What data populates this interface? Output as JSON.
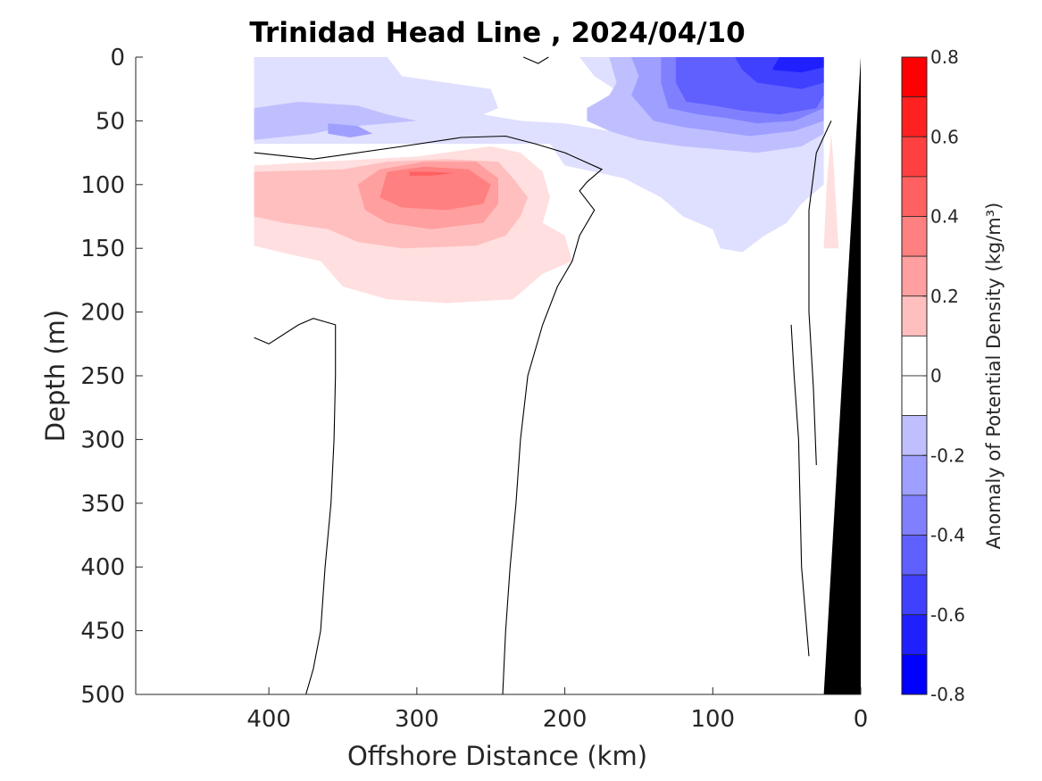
{
  "chart_data": {
    "type": "heatmap",
    "title": "Trinidad Head Line , 2024/04/10",
    "xlabel": "Offshore Distance (km)",
    "ylabel": "Depth (m)",
    "xlim": [
      490,
      0
    ],
    "ylim": [
      0,
      500
    ],
    "x_reversed": true,
    "y_reversed": true,
    "xticks": [
      400,
      300,
      200,
      100,
      0
    ],
    "yticks": [
      0,
      50,
      100,
      150,
      200,
      250,
      300,
      350,
      400,
      450,
      500
    ],
    "colorbar": {
      "label": "Anomaly of Potential Density (kg/m³)",
      "range": [
        -0.8,
        0.8
      ],
      "step": 0.1,
      "ticks": [
        0.8,
        0.6,
        0.4,
        0.2,
        0,
        -0.2,
        -0.4,
        -0.6,
        -0.8
      ],
      "tick_labels": [
        "0.8",
        "0.6",
        "0.4",
        "0.2",
        "0",
        "-0.2",
        "-0.4",
        "-0.6",
        "-0.8"
      ],
      "positive_color": "#ff0000",
      "negative_color": "#0000ff",
      "zero_color": "#ffffff"
    },
    "filled_contours": [
      {
        "value": -0.1,
        "polygon": [
          [
            410,
            0
          ],
          [
            320,
            0
          ],
          [
            310,
            15
          ],
          [
            250,
            25
          ],
          [
            245,
            40
          ],
          [
            255,
            45
          ],
          [
            230,
            50
          ],
          [
            200,
            52
          ],
          [
            170,
            58
          ],
          [
            150,
            60
          ],
          [
            100,
            63
          ],
          [
            70,
            65
          ],
          [
            40,
            68
          ],
          [
            410,
            68
          ]
        ]
      },
      {
        "value": -0.1,
        "polygon": [
          [
            210,
            0
          ],
          [
            190,
            0
          ],
          [
            180,
            15
          ],
          [
            160,
            30
          ],
          [
            145,
            40
          ],
          [
            150,
            55
          ],
          [
            180,
            60
          ],
          [
            210,
            68
          ],
          [
            200,
            85
          ],
          [
            160,
            95
          ],
          [
            135,
            110
          ],
          [
            120,
            125
          ],
          [
            100,
            135
          ],
          [
            95,
            150
          ],
          [
            80,
            153
          ],
          [
            65,
            140
          ],
          [
            50,
            130
          ],
          [
            40,
            115
          ],
          [
            25,
            100
          ],
          [
            25,
            50
          ],
          [
            25,
            0
          ]
        ]
      },
      {
        "value": -0.2,
        "polygon": [
          [
            410,
            40
          ],
          [
            380,
            35
          ],
          [
            340,
            38
          ],
          [
            320,
            45
          ],
          [
            300,
            50
          ],
          [
            350,
            55
          ],
          [
            370,
            60
          ],
          [
            410,
            65
          ]
        ]
      },
      {
        "value": -0.2,
        "polygon": [
          [
            170,
            0
          ],
          [
            165,
            20
          ],
          [
            170,
            30
          ],
          [
            185,
            40
          ],
          [
            185,
            50
          ],
          [
            170,
            58
          ],
          [
            150,
            65
          ],
          [
            120,
            70
          ],
          [
            100,
            72
          ],
          [
            70,
            75
          ],
          [
            40,
            70
          ],
          [
            25,
            60
          ],
          [
            25,
            0
          ]
        ]
      },
      {
        "value": -0.3,
        "polygon": [
          [
            360,
            52
          ],
          [
            340,
            54
          ],
          [
            330,
            60
          ],
          [
            345,
            63
          ],
          [
            360,
            60
          ]
        ]
      },
      {
        "value": -0.3,
        "polygon": [
          [
            155,
            0
          ],
          [
            150,
            15
          ],
          [
            155,
            30
          ],
          [
            140,
            50
          ],
          [
            120,
            55
          ],
          [
            100,
            58
          ],
          [
            75,
            62
          ],
          [
            45,
            58
          ],
          [
            25,
            50
          ],
          [
            25,
            0
          ]
        ]
      },
      {
        "value": -0.4,
        "polygon": [
          [
            135,
            0
          ],
          [
            135,
            20
          ],
          [
            130,
            40
          ],
          [
            110,
            45
          ],
          [
            90,
            48
          ],
          [
            70,
            52
          ],
          [
            45,
            50
          ],
          [
            25,
            40
          ],
          [
            25,
            0
          ]
        ]
      },
      {
        "value": -0.5,
        "polygon": [
          [
            125,
            0
          ],
          [
            125,
            20
          ],
          [
            118,
            35
          ],
          [
            100,
            38
          ],
          [
            80,
            42
          ],
          [
            55,
            45
          ],
          [
            30,
            40
          ],
          [
            25,
            30
          ],
          [
            25,
            0
          ]
        ]
      },
      {
        "value": -0.6,
        "polygon": [
          [
            85,
            0
          ],
          [
            80,
            10
          ],
          [
            70,
            20
          ],
          [
            40,
            25
          ],
          [
            25,
            20
          ],
          [
            25,
            0
          ]
        ]
      },
      {
        "value": -0.7,
        "polygon": [
          [
            55,
            0
          ],
          [
            60,
            10
          ],
          [
            40,
            12
          ],
          [
            25,
            8
          ],
          [
            25,
            0
          ]
        ]
      },
      {
        "value": 0.1,
        "polygon": [
          [
            410,
            85
          ],
          [
            300,
            78
          ],
          [
            250,
            70
          ],
          [
            230,
            75
          ],
          [
            215,
            90
          ],
          [
            210,
            110
          ],
          [
            215,
            130
          ],
          [
            200,
            140
          ],
          [
            195,
            160
          ],
          [
            215,
            170
          ],
          [
            235,
            190
          ],
          [
            280,
            193
          ],
          [
            320,
            190
          ],
          [
            350,
            180
          ],
          [
            365,
            160
          ],
          [
            385,
            155
          ],
          [
            410,
            148
          ]
        ]
      },
      {
        "value": 0.1,
        "polygon": [
          [
            20,
            60
          ],
          [
            23,
            100
          ],
          [
            25,
            150
          ],
          [
            15,
            150
          ],
          [
            18,
            90
          ]
        ]
      },
      {
        "value": 0.2,
        "polygon": [
          [
            410,
            90
          ],
          [
            350,
            88
          ],
          [
            320,
            82
          ],
          [
            280,
            80
          ],
          [
            245,
            82
          ],
          [
            235,
            95
          ],
          [
            225,
            110
          ],
          [
            230,
            125
          ],
          [
            240,
            140
          ],
          [
            260,
            148
          ],
          [
            310,
            150
          ],
          [
            340,
            145
          ],
          [
            360,
            135
          ],
          [
            390,
            130
          ],
          [
            410,
            125
          ]
        ]
      },
      {
        "value": 0.3,
        "polygon": [
          [
            325,
            88
          ],
          [
            295,
            82
          ],
          [
            260,
            82
          ],
          [
            245,
            95
          ],
          [
            245,
            115
          ],
          [
            255,
            130
          ],
          [
            290,
            135
          ],
          [
            320,
            130
          ],
          [
            335,
            120
          ],
          [
            340,
            100
          ]
        ]
      },
      {
        "value": 0.4,
        "polygon": [
          [
            320,
            90
          ],
          [
            295,
            86
          ],
          [
            265,
            88
          ],
          [
            250,
            100
          ],
          [
            255,
            115
          ],
          [
            280,
            120
          ],
          [
            310,
            118
          ],
          [
            325,
            110
          ]
        ]
      },
      {
        "value": 0.5,
        "polygon": [
          [
            305,
            90
          ],
          [
            290,
            90
          ],
          [
            275,
            91
          ],
          [
            290,
            93
          ],
          [
            305,
            93
          ]
        ]
      }
    ],
    "zero_contours": [
      [
        [
          410,
          75
        ],
        [
          370,
          80
        ],
        [
          310,
          70
        ],
        [
          270,
          63
        ],
        [
          240,
          62
        ],
        [
          220,
          68
        ],
        [
          200,
          75
        ],
        [
          175,
          88
        ],
        [
          185,
          98
        ],
        [
          190,
          105
        ],
        [
          180,
          120
        ],
        [
          190,
          140
        ],
        [
          195,
          160
        ],
        [
          205,
          180
        ],
        [
          215,
          210
        ],
        [
          225,
          250
        ],
        [
          230,
          300
        ],
        [
          233,
          350
        ],
        [
          237,
          400
        ],
        [
          240,
          450
        ],
        [
          242,
          500
        ]
      ],
      [
        [
          410,
          220
        ],
        [
          400,
          225
        ],
        [
          380,
          210
        ],
        [
          370,
          205
        ],
        [
          355,
          210
        ],
        [
          355,
          250
        ],
        [
          356,
          300
        ],
        [
          358,
          350
        ],
        [
          362,
          400
        ],
        [
          365,
          450
        ],
        [
          370,
          480
        ],
        [
          375,
          500
        ]
      ],
      [
        [
          228,
          0
        ],
        [
          218,
          5
        ],
        [
          211,
          0
        ]
      ],
      [
        [
          35,
          470
        ],
        [
          40,
          400
        ],
        [
          42,
          300
        ],
        [
          45,
          250
        ],
        [
          47,
          210
        ]
      ],
      [
        [
          30,
          320
        ],
        [
          32,
          260
        ],
        [
          35,
          200
        ],
        [
          35,
          120
        ],
        [
          30,
          75
        ],
        [
          20,
          50
        ]
      ]
    ],
    "land_mask": [
      [
        0,
        0
      ],
      [
        25,
        500
      ],
      [
        0,
        500
      ]
    ]
  }
}
